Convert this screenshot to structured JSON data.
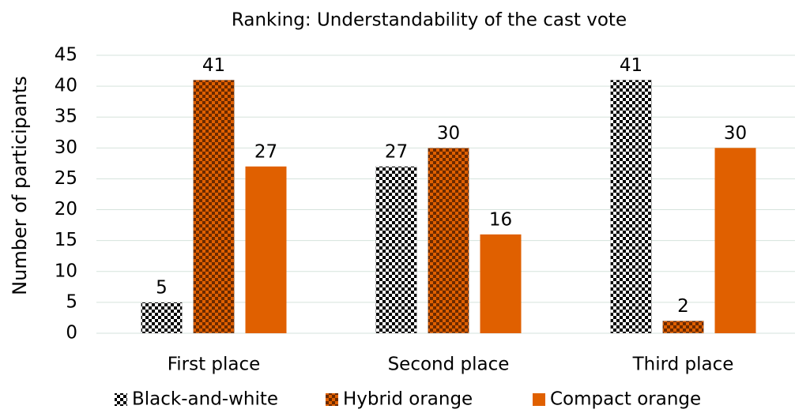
{
  "chart_data": {
    "type": "bar",
    "title": "Ranking: Understandability of the cast vote",
    "y_label": "Number of participants",
    "categories": [
      "First place",
      "Second place",
      "Third place"
    ],
    "series": [
      {
        "name": "Black-and-white",
        "color": "#ffffff",
        "pattern_color": "#000000",
        "pattern": "checker",
        "values": [
          5,
          27,
          41
        ]
      },
      {
        "name": "Hybrid orange",
        "color": "#e06000",
        "pattern_color": "#6b2a00",
        "pattern": "checker",
        "values": [
          41,
          30,
          2
        ]
      },
      {
        "name": "Compact orange",
        "color": "#e06000",
        "values": [
          27,
          16,
          30
        ]
      }
    ],
    "ylim": [
      0,
      45
    ],
    "yticks": [
      0,
      5,
      10,
      15,
      20,
      25,
      30,
      35,
      40,
      45
    ],
    "grid": true,
    "legend": "bottom"
  }
}
